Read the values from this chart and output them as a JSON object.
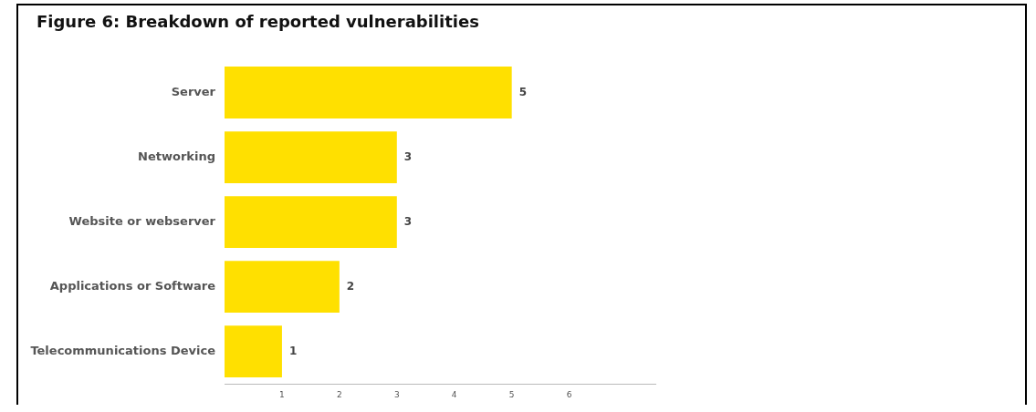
{
  "chart_data": {
    "type": "bar",
    "orientation": "horizontal",
    "title": "Figure 6: Breakdown of reported vulnerabilities",
    "categories": [
      "Server",
      "Networking",
      "Website or webserver",
      "Applications or Software",
      "Telecommunications Device"
    ],
    "values": [
      5,
      3,
      3,
      2,
      1
    ],
    "color": "#ffe000",
    "xlim": [
      0,
      7.5
    ],
    "xticks": [
      1,
      2,
      3,
      4,
      5,
      6
    ],
    "data_labels": true,
    "grid": false,
    "legend": false
  }
}
